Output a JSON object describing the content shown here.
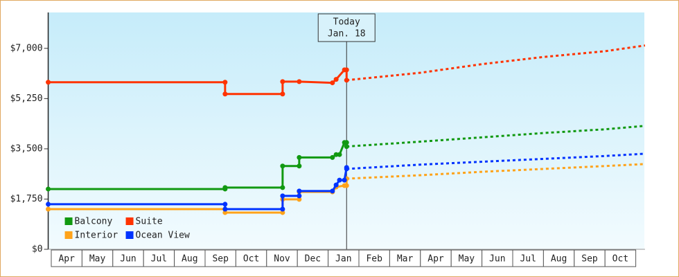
{
  "chart_data": {
    "type": "line",
    "categories": [
      "Apr",
      "May",
      "Jun",
      "Jul",
      "Aug",
      "Sep",
      "Oct",
      "Nov",
      "Dec",
      "Jan",
      "Feb",
      "Mar",
      "Apr",
      "May",
      "Jun",
      "Jul",
      "Aug",
      "Sep",
      "Oct"
    ],
    "xlim": [
      -0.1,
      19.3
    ],
    "ylim": [
      0,
      8250
    ],
    "yticks": [
      {
        "value": 0,
        "label": "$0"
      },
      {
        "value": 1750,
        "label": "$1,750"
      },
      {
        "value": 3500,
        "label": "$3,500"
      },
      {
        "value": 5250,
        "label": "$5,250"
      },
      {
        "value": 7000,
        "label": "$7,000"
      }
    ],
    "legend": "lower left",
    "today": {
      "x": 9.6,
      "label": [
        "Today",
        "Jan. 18"
      ]
    },
    "series": [
      {
        "name": "Balcony",
        "color": "#119911",
        "x": [
          -0.1,
          5.65,
          5.65,
          7.52,
          7.52,
          8.06,
          8.06,
          9.14,
          9.26,
          9.37,
          9.53,
          9.6,
          9.6
        ],
        "values": [
          2100,
          2100,
          2150,
          2150,
          2900,
          2900,
          3200,
          3200,
          3300,
          3300,
          3720,
          3720,
          3580
        ],
        "forecast_x": [
          9.6,
          12,
          14,
          16,
          18,
          19.3
        ],
        "forecast_values": [
          3580,
          3750,
          3900,
          4050,
          4180,
          4300
        ]
      },
      {
        "name": "Suite",
        "color": "#ff3300",
        "x": [
          -0.1,
          5.65,
          5.65,
          7.52,
          7.52,
          8.06,
          9.14,
          9.26,
          9.53,
          9.6,
          9.6
        ],
        "values": [
          5820,
          5820,
          5410,
          5410,
          5840,
          5840,
          5800,
          5920,
          6250,
          6250,
          5890
        ],
        "forecast_x": [
          9.6,
          12,
          14,
          16,
          18,
          19.3
        ],
        "forecast_values": [
          5890,
          6150,
          6450,
          6700,
          6900,
          7100
        ]
      },
      {
        "name": "Interior",
        "color": "#ffa31a",
        "x": [
          -0.1,
          5.65,
          5.65,
          7.52,
          7.52,
          8.06,
          8.06,
          9.14,
          9.26,
          9.53,
          9.6,
          9.6
        ],
        "values": [
          1400,
          1400,
          1280,
          1280,
          1740,
          1740,
          2000,
          2000,
          2170,
          2220,
          2220,
          2460
        ],
        "forecast_x": [
          9.6,
          12,
          14,
          16,
          18,
          19.3
        ],
        "forecast_values": [
          2460,
          2580,
          2700,
          2800,
          2900,
          2970
        ]
      },
      {
        "name": "Ocean View",
        "color": "#0033ff",
        "x": [
          -0.1,
          5.65,
          5.65,
          7.52,
          7.52,
          8.06,
          8.06,
          9.14,
          9.26,
          9.37,
          9.53,
          9.6,
          9.6
        ],
        "values": [
          1570,
          1570,
          1400,
          1400,
          1860,
          1860,
          2030,
          2030,
          2240,
          2410,
          2410,
          2850,
          2800
        ],
        "forecast_x": [
          9.6,
          12,
          14,
          16,
          18,
          19.3
        ],
        "forecast_values": [
          2800,
          2950,
          3050,
          3150,
          3250,
          3330
        ]
      }
    ]
  }
}
